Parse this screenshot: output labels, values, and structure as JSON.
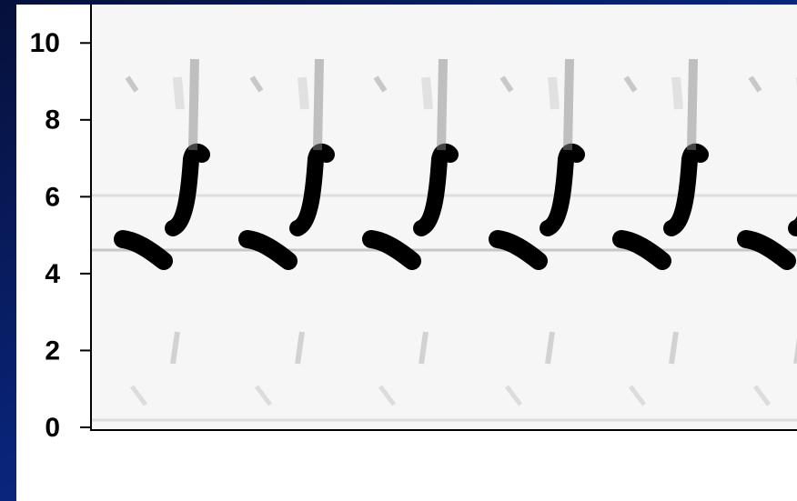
{
  "chart_data": {
    "type": "spectrogram",
    "ylim": [
      0,
      11
    ],
    "yticks": [
      0,
      2,
      4,
      6,
      8,
      10
    ]
  }
}
